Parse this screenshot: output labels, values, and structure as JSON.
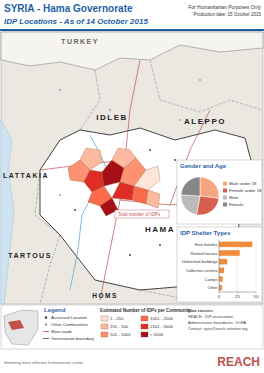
{
  "header": {
    "title": "SYRIA - Hama Governorate",
    "subtitle": "IDP Locations - As of 14 October 2015",
    "notice": "For Humanitarian Purposes Only",
    "production_date": "Production date: 15 October 2015"
  },
  "map": {
    "regions": [
      "TURKEY",
      "IDLEB",
      "ALEPPO",
      "LATTAKIA",
      "HAMA",
      "TARTOUS",
      "HOMS"
    ],
    "annotation": "Total number of IDPs"
  },
  "chart_data": [
    {
      "type": "pie",
      "title": "Gender and Age",
      "categories": [
        "Male under 18",
        "Female under 18",
        "Male",
        "Female"
      ],
      "values": [
        27,
        26,
        23,
        24
      ],
      "colors": [
        "#f4a582",
        "#d6604d",
        "#bababa",
        "#878787"
      ],
      "legend": "right"
    },
    {
      "type": "bar",
      "title": "IDP Shelter Types",
      "orientation": "horizontal",
      "categories": [
        "Host families",
        "Rented houses",
        "Unfinished buildings",
        "Collective centres",
        "Camps",
        "Other"
      ],
      "values": [
        45,
        28,
        11,
        7,
        5,
        4
      ],
      "color": "#f08c3c",
      "xlim": [
        0,
        50
      ],
      "xticks": [
        0,
        25,
        50
      ],
      "grid": true
    }
  ],
  "legend": {
    "title": "Legend",
    "symbols": [
      "Assessed Location",
      "Other Communities",
      "Main roads",
      "Governorate boundary"
    ],
    "classes_title": "Estimated Number of IDPs per Community",
    "classes": [
      {
        "label": "1 - 250",
        "color": "#fee5d9"
      },
      {
        "label": "251 - 500",
        "color": "#fcbba1"
      },
      {
        "label": "501 - 1000",
        "color": "#fc9272"
      },
      {
        "label": "1001 - 2500",
        "color": "#fb6a4a"
      },
      {
        "label": "2501 - 5000",
        "color": "#de2d26"
      },
      {
        "label": "> 5000",
        "color": "#a50f15"
      }
    ]
  },
  "sources": {
    "lines": [
      "Data sources:",
      "REACH - IDP assessment",
      "Administrative boundaries: OCHA",
      "Contact: syria@reach-initiative.org"
    ]
  },
  "footer": {
    "logo": "REACH",
    "tagline": "Informing more effective humanitarian action"
  }
}
